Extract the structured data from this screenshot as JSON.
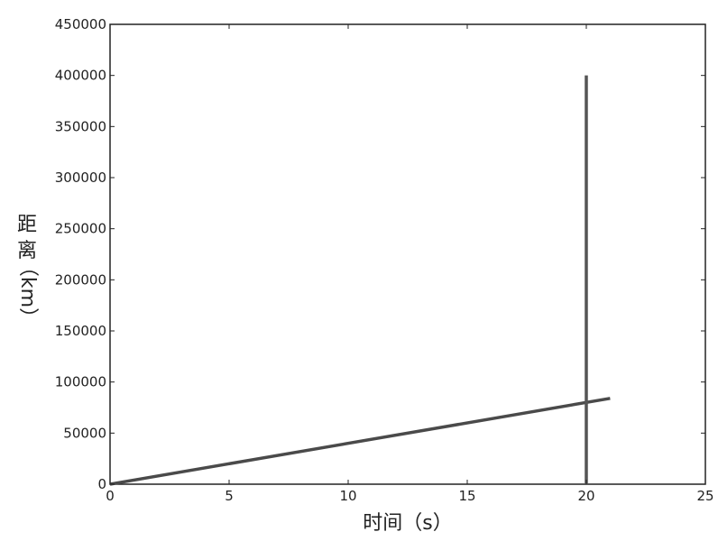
{
  "chart_data": {
    "type": "line",
    "title": "",
    "xlabel": "时间（s）",
    "ylabel_chars": [
      "距",
      "离",
      "（km）"
    ],
    "xlim": [
      0,
      25
    ],
    "ylim": [
      0,
      450000
    ],
    "x_ticks": [
      0,
      5,
      10,
      15,
      20,
      25
    ],
    "x_tick_labels": [
      "0",
      "5",
      "10",
      "15",
      "20",
      "25"
    ],
    "y_ticks": [
      0,
      50000,
      100000,
      150000,
      200000,
      250000,
      300000,
      350000,
      400000,
      450000
    ],
    "y_tick_labels": [
      "0",
      "50000",
      "100000",
      "150000",
      "200000",
      "250000",
      "300000",
      "350000",
      "400000",
      "450000"
    ],
    "grid": true,
    "series": [
      {
        "x": [
          0,
          21
        ],
        "y": [
          0,
          84000
        ],
        "color": "#4a4a4a"
      },
      {
        "x": [
          20,
          20
        ],
        "y": [
          0,
          400000
        ],
        "color": "#555555"
      }
    ]
  }
}
